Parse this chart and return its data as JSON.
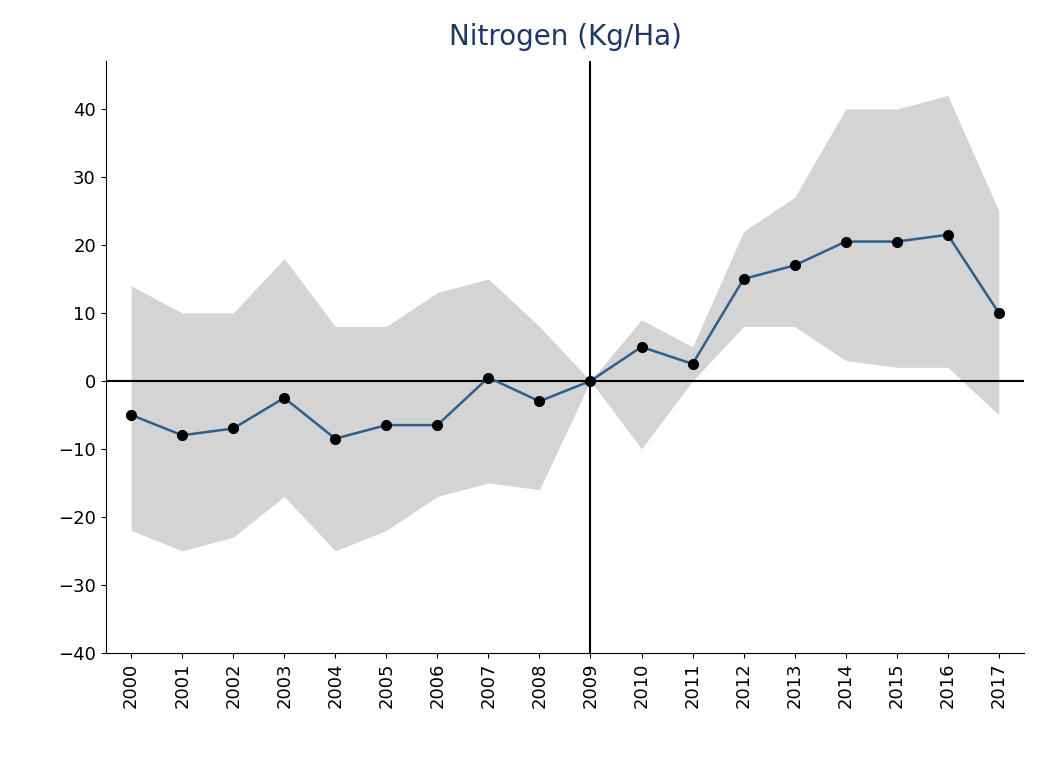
{
  "title": "Nitrogen (Kg/Ha)",
  "title_color": "#1f3864",
  "years": [
    2000,
    2001,
    2002,
    2003,
    2004,
    2005,
    2006,
    2007,
    2008,
    2009,
    2010,
    2011,
    2012,
    2013,
    2014,
    2015,
    2016,
    2017
  ],
  "values": [
    -5,
    -8,
    -7,
    -2.5,
    -8.5,
    -6.5,
    -6.5,
    0.5,
    -3,
    0,
    5,
    2.5,
    15,
    17,
    20.5,
    20.5,
    21.5,
    10
  ],
  "ci_upper": [
    14,
    10,
    10,
    18,
    8,
    8,
    13,
    15,
    8,
    0,
    9,
    5,
    22,
    27,
    40,
    40,
    42,
    25
  ],
  "ci_lower": [
    -22,
    -25,
    -23,
    -17,
    -25,
    -22,
    -17,
    -15,
    -16,
    0,
    -10,
    0,
    8,
    8,
    3,
    2,
    2,
    -5
  ],
  "vline_x": 2009,
  "hline_y": 0,
  "ylim": [
    -40,
    47
  ],
  "yticks": [
    -40,
    -30,
    -20,
    -10,
    0,
    10,
    20,
    30,
    40
  ],
  "xlim": [
    1999.5,
    2017.5
  ],
  "line_color": "#2e5f8a",
  "ci_color": "#d4d4d4",
  "dot_color": "black",
  "background_color": "#ffffff",
  "title_fontsize": 20,
  "tick_fontsize": 13
}
